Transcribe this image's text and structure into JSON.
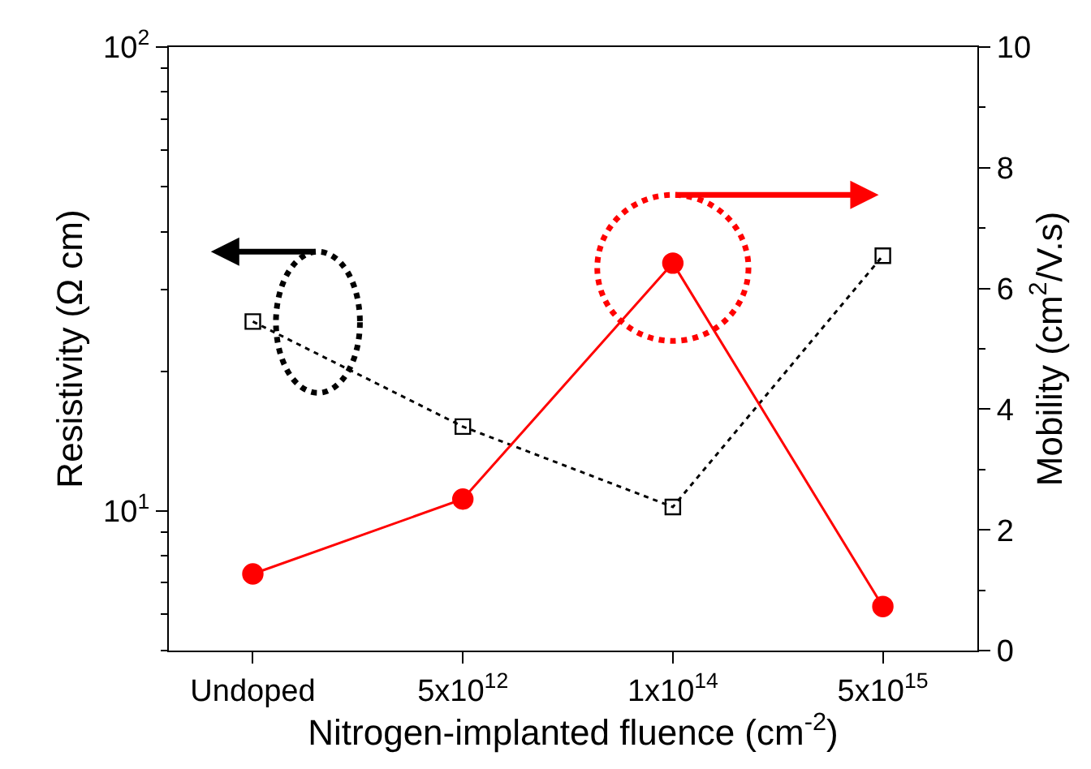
{
  "chart_data": {
    "type": "line",
    "xlabel": "Nitrogen-implanted fluence (cm$^{-2}$)",
    "ylabel": "Resistivity (Ω cm)",
    "y2label": "Mobility (cm$^{2}$/V.s)",
    "categories": [
      "Undoped",
      "5x10$^{12}$",
      "1x10$^{14}$",
      "5x10$^{15}$"
    ],
    "log": "y",
    "ylim": [
      5,
      100
    ],
    "yticks": [
      {
        "value": 10,
        "label": "10$^{1}$"
      },
      {
        "value": 100,
        "label": "10$^{2}$"
      }
    ],
    "y2lim": [
      0,
      10
    ],
    "y2ticks": [
      0,
      2,
      4,
      6,
      8,
      10
    ],
    "series": [
      {
        "color": "#000000",
        "values": [
          25.6,
          15.2,
          10.2,
          35.5
        ],
        "marker": "square",
        "line_style": "dotted"
      },
      {
        "color": "#ff0000",
        "values": [
          1.27,
          2.51,
          6.42,
          0.73
        ],
        "marker": "circle",
        "line_style": "solid",
        "axis": "y2"
      }
    ]
  }
}
